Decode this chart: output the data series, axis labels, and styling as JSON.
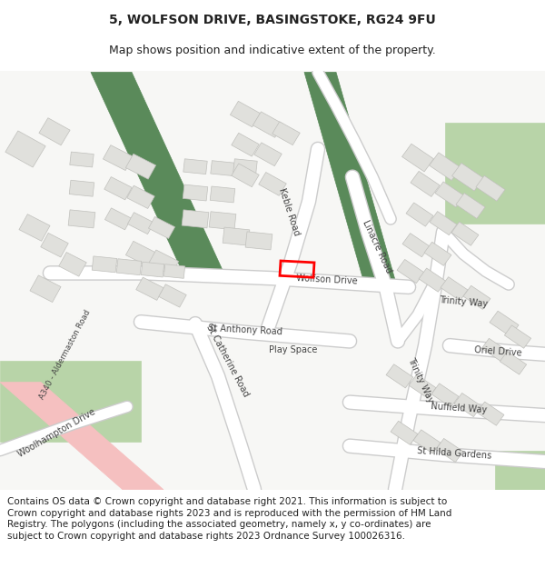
{
  "title": "5, WOLFSON DRIVE, BASINGSTOKE, RG24 9FU",
  "subtitle": "Map shows position and indicative extent of the property.",
  "footer": "Contains OS data © Crown copyright and database right 2021. This information is subject to Crown copyright and database rights 2023 and is reproduced with the permission of HM Land Registry. The polygons (including the associated geometry, namely x, y co-ordinates) are subject to Crown copyright and database rights 2023 Ordnance Survey 100026316.",
  "title_fontsize": 10,
  "subtitle_fontsize": 9,
  "footer_fontsize": 7.5,
  "map_bg": "#f7f7f5",
  "road_color": "#ffffff",
  "road_edge_color": "#cccccc",
  "building_color": "#e0e0dc",
  "building_edge": "#c0c0bc",
  "dark_green_color": "#5a8a5a",
  "light_green_color": "#b8d4a8",
  "highlight_color": "#ff0000",
  "a340_color": "#f5c0c0",
  "text_color": "#222222",
  "road_label_color": "#444444"
}
